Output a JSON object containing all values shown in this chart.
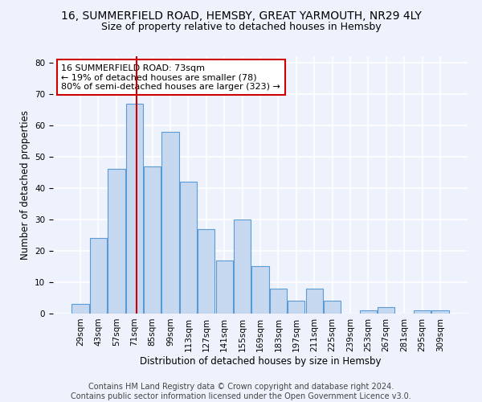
{
  "title1": "16, SUMMERFIELD ROAD, HEMSBY, GREAT YARMOUTH, NR29 4LY",
  "title2": "Size of property relative to detached houses in Hemsby",
  "xlabel": "Distribution of detached houses by size in Hemsby",
  "ylabel": "Number of detached properties",
  "categories": [
    "29sqm",
    "43sqm",
    "57sqm",
    "71sqm",
    "85sqm",
    "99sqm",
    "113sqm",
    "127sqm",
    "141sqm",
    "155sqm",
    "169sqm",
    "183sqm",
    "197sqm",
    "211sqm",
    "225sqm",
    "239sqm",
    "253sqm",
    "267sqm",
    "281sqm",
    "295sqm",
    "309sqm"
  ],
  "values": [
    3,
    24,
    46,
    67,
    47,
    58,
    42,
    27,
    17,
    30,
    15,
    8,
    4,
    8,
    4,
    0,
    1,
    2,
    0,
    1,
    1
  ],
  "bar_color": "#c5d8f0",
  "bar_edge_color": "#5b9bd5",
  "vline_color": "#cc0000",
  "annotation_box_text": "16 SUMMERFIELD ROAD: 73sqm\n← 19% of detached houses are smaller (78)\n80% of semi-detached houses are larger (323) →",
  "ylim": [
    0,
    82
  ],
  "yticks": [
    0,
    10,
    20,
    30,
    40,
    50,
    60,
    70,
    80
  ],
  "footer1": "Contains HM Land Registry data © Crown copyright and database right 2024.",
  "footer2": "Contains public sector information licensed under the Open Government Licence v3.0.",
  "background_color": "#eef2fc",
  "grid_color": "#ffffff",
  "title1_fontsize": 10,
  "title2_fontsize": 9,
  "axis_label_fontsize": 8.5,
  "tick_fontsize": 7.5,
  "footer_fontsize": 7,
  "annot_fontsize": 8
}
